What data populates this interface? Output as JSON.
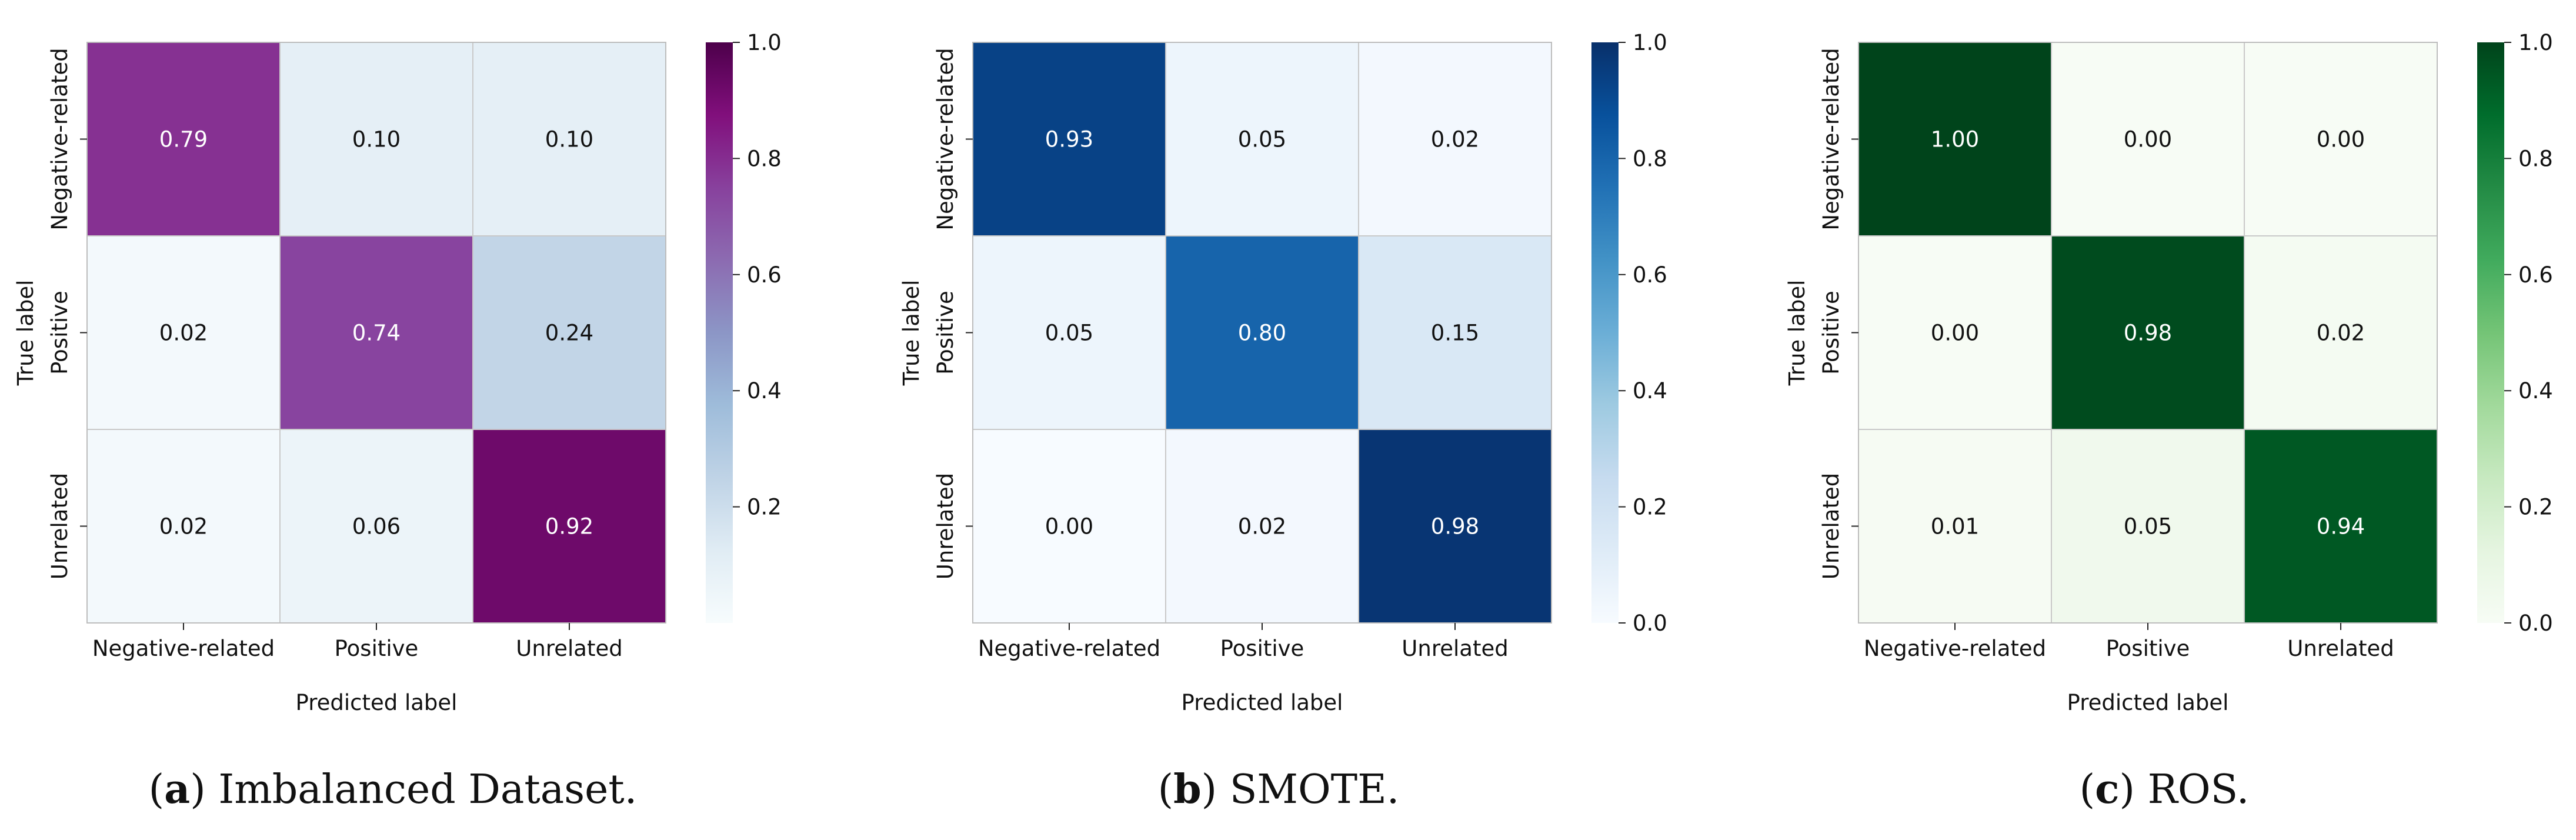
{
  "chart_data": [
    {
      "type": "heatmap",
      "caption": {
        "letter": "a",
        "prefix": "(",
        "suffix": ") Imbalanced Dataset."
      },
      "xlabel": "Predicted label",
      "ylabel": "True label",
      "rows": [
        "Negative-related",
        "Positive",
        "Unrelated"
      ],
      "cols": [
        "Negative-related",
        "Positive",
        "Unrelated"
      ],
      "values": [
        [
          0.79,
          0.1,
          0.1
        ],
        [
          0.02,
          0.74,
          0.24
        ],
        [
          0.02,
          0.06,
          0.92
        ]
      ],
      "colormap": "BuPu",
      "colorbar": {
        "vmin": 0.0,
        "vmax": 1.0,
        "ticks": [
          0.2,
          0.4,
          0.6,
          0.8,
          1.0
        ]
      }
    },
    {
      "type": "heatmap",
      "caption": {
        "letter": "b",
        "prefix": "(",
        "suffix": ") SMOTE."
      },
      "xlabel": "Predicted label",
      "ylabel": "True label",
      "rows": [
        "Negative-related",
        "Positive",
        "Unrelated"
      ],
      "cols": [
        "Negative-related",
        "Positive",
        "Unrelated"
      ],
      "values": [
        [
          0.93,
          0.05,
          0.02
        ],
        [
          0.05,
          0.8,
          0.15
        ],
        [
          0.0,
          0.02,
          0.98
        ]
      ],
      "colormap": "Blues",
      "colorbar": {
        "vmin": 0.0,
        "vmax": 1.0,
        "ticks": [
          0.0,
          0.2,
          0.4,
          0.6,
          0.8,
          1.0
        ]
      }
    },
    {
      "type": "heatmap",
      "caption": {
        "letter": "c",
        "prefix": "(",
        "suffix": ") ROS."
      },
      "xlabel": "Predicted label",
      "ylabel": "True label",
      "rows": [
        "Negative-related",
        "Positive",
        "Unrelated"
      ],
      "cols": [
        "Negative-related",
        "Positive",
        "Unrelated"
      ],
      "values": [
        [
          1.0,
          0.0,
          0.0
        ],
        [
          0.0,
          0.98,
          0.02
        ],
        [
          0.01,
          0.05,
          0.94
        ]
      ],
      "colormap": "Greens",
      "colorbar": {
        "vmin": 0.0,
        "vmax": 1.0,
        "ticks": [
          0.0,
          0.2,
          0.4,
          0.6,
          0.8,
          1.0
        ]
      }
    }
  ]
}
